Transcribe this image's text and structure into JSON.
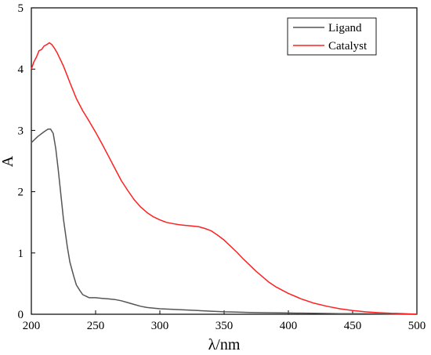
{
  "chart_data": {
    "type": "line",
    "xlabel": "λ/nm",
    "ylabel": "A",
    "xlim": [
      200,
      500
    ],
    "ylim": [
      0,
      5
    ],
    "xticks": [
      200,
      250,
      300,
      350,
      400,
      450,
      500
    ],
    "yticks": [
      0,
      1,
      2,
      3,
      4,
      5
    ],
    "legend_position": "top-right",
    "grid": false,
    "series": [
      {
        "name": "Ligand",
        "color": "#555555",
        "x": [
          200,
          205,
          210,
          213,
          215,
          217,
          219,
          221,
          223,
          225,
          228,
          230,
          233,
          235,
          238,
          240,
          243,
          245,
          250,
          255,
          260,
          265,
          270,
          275,
          280,
          285,
          290,
          300,
          310,
          320,
          330,
          340,
          350,
          360,
          370,
          380,
          400,
          420,
          440,
          460,
          480,
          500
        ],
        "y": [
          2.8,
          2.9,
          2.98,
          3.02,
          3.02,
          2.95,
          2.7,
          2.35,
          1.95,
          1.55,
          1.1,
          0.85,
          0.62,
          0.48,
          0.38,
          0.32,
          0.29,
          0.27,
          0.27,
          0.26,
          0.25,
          0.24,
          0.22,
          0.19,
          0.16,
          0.13,
          0.11,
          0.09,
          0.08,
          0.07,
          0.06,
          0.05,
          0.04,
          0.035,
          0.03,
          0.025,
          0.02,
          0.015,
          0.01,
          0.01,
          0.005,
          0.0
        ]
      },
      {
        "name": "Catalyst",
        "color": "#ff2020",
        "x": [
          200,
          202,
          204,
          206,
          208,
          210,
          212,
          214,
          216,
          218,
          220,
          222,
          225,
          230,
          235,
          240,
          245,
          250,
          255,
          260,
          265,
          270,
          275,
          280,
          285,
          290,
          295,
          300,
          305,
          310,
          315,
          320,
          325,
          330,
          335,
          340,
          345,
          350,
          355,
          360,
          365,
          370,
          375,
          380,
          385,
          390,
          400,
          410,
          420,
          430,
          440,
          450,
          460,
          470,
          480,
          490,
          500
        ],
        "y": [
          4.0,
          4.12,
          4.2,
          4.3,
          4.32,
          4.38,
          4.4,
          4.43,
          4.4,
          4.34,
          4.27,
          4.18,
          4.05,
          3.78,
          3.52,
          3.32,
          3.15,
          2.97,
          2.78,
          2.58,
          2.38,
          2.18,
          2.02,
          1.87,
          1.75,
          1.66,
          1.59,
          1.54,
          1.5,
          1.48,
          1.46,
          1.45,
          1.44,
          1.43,
          1.4,
          1.36,
          1.29,
          1.21,
          1.11,
          1.01,
          0.9,
          0.8,
          0.7,
          0.61,
          0.52,
          0.45,
          0.34,
          0.25,
          0.18,
          0.13,
          0.09,
          0.06,
          0.04,
          0.025,
          0.015,
          0.01,
          0.0
        ]
      }
    ]
  }
}
